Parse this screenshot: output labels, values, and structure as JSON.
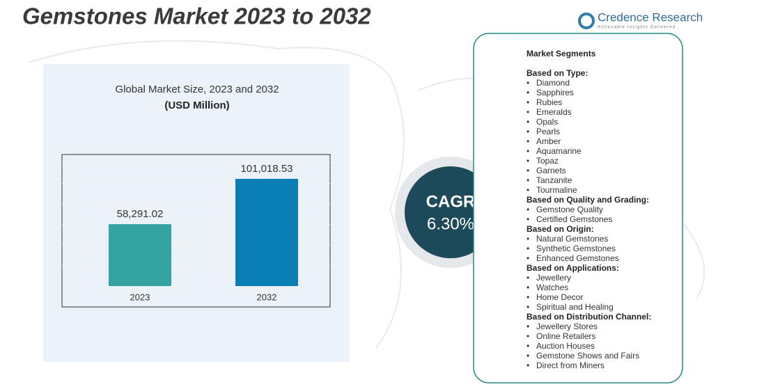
{
  "title": "Gemstones Market 2023 to 2032",
  "logo": {
    "name": "Credence Research",
    "tagline": "Actionable Insights Delivered"
  },
  "chart_data": {
    "type": "bar",
    "title": "Global Market Size, 2023 and 2032",
    "subtitle": "(USD Million)",
    "categories": [
      "2023",
      "2032"
    ],
    "series": [
      {
        "values": [
          58291.02,
          101018.53
        ],
        "value_labels": [
          "58,291.02",
          "101,018.53"
        ],
        "colors": [
          "#35a3a1",
          "#0a7fb5"
        ]
      }
    ],
    "ylim": [
      0,
      120000
    ]
  },
  "cagr": {
    "label": "CAGR",
    "value": "6.30%"
  },
  "segments": {
    "heading": "Market Segments",
    "groups": [
      {
        "title": "Based on Type:",
        "items": [
          "Diamond",
          "Sapphires",
          "Rubies",
          "Emeralds",
          "Opals",
          "Pearls",
          "Amber",
          "Aquamarine",
          "Topaz",
          "Garnets",
          "Tanzanite",
          "Tourmaline"
        ]
      },
      {
        "title": "Based on Quality and Grading:",
        "items": [
          "Gemstone Quality",
          "Certified Gemstones"
        ]
      },
      {
        "title": "Based on Origin:",
        "items": [
          "Natural Gemstones",
          "Synthetic Gemstones",
          "Enhanced Gemstones"
        ]
      },
      {
        "title": "Based on Applications:",
        "items": [
          "Jewellery",
          "Watches",
          "Home Decor",
          "Spiritual and Healing"
        ]
      },
      {
        "title": "Based on Distribution Channel:",
        "items": [
          "Jewellery Stores",
          "Online Retailers",
          "Auction Houses",
          "Gemstone Shows and Fairs",
          "Direct from Miners"
        ]
      }
    ]
  }
}
